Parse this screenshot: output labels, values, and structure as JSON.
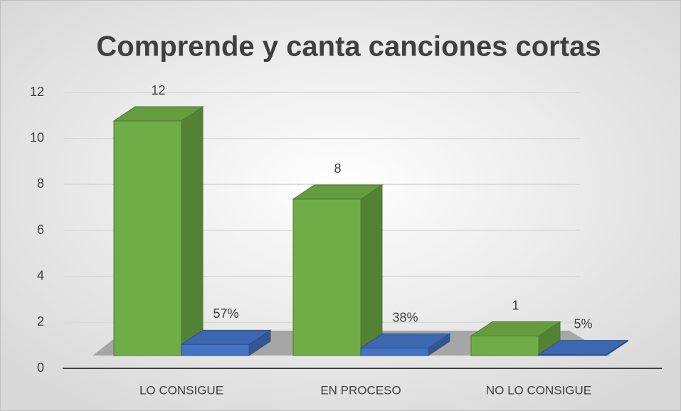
{
  "chart_data": {
    "type": "bar3d",
    "title": "Comprende y canta canciones cortas",
    "categories": [
      "LO CONSIGUE",
      "EN PROCESO",
      "NO LO CONSIGUE"
    ],
    "series": [
      {
        "color": "#70ad47",
        "values": [
          12,
          8,
          1
        ]
      },
      {
        "color": "#4472c4",
        "values": [
          0.57,
          0.38,
          0.05
        ],
        "value_labels": [
          "57%",
          "38%",
          "5%"
        ]
      }
    ],
    "ylim": [
      0,
      12
    ],
    "yticks": [
      0,
      2,
      4,
      6,
      8,
      10,
      12
    ],
    "grid": true
  }
}
